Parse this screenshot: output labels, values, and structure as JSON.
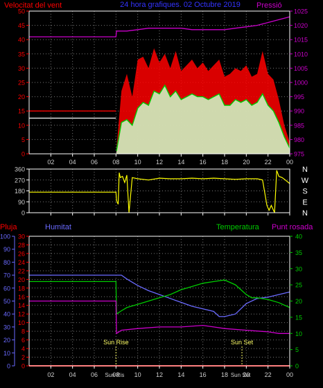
{
  "colors": {
    "background": "#000000",
    "frame": "#ffffff",
    "grid": "#777777",
    "gust": "#ff0000",
    "wind": "#00cc00",
    "wind_low": "#ccffcc",
    "pressure": "#cc00cc",
    "direction": "#ffff00",
    "rain": "#ff0000",
    "humidity": "#6a6aff",
    "temperature": "#00cc00",
    "dewpoint": "#cc00cc",
    "title": "#3333ff"
  },
  "chart_data": [
    {
      "type": "line",
      "title": "24 hora grafiques. 02 Octubre 2019",
      "ylabel_left": "Velocitat del vent",
      "ylabel_right": "Pressió",
      "x_ticks": [
        "02",
        "04",
        "06",
        "08",
        "10",
        "12",
        "14",
        "16",
        "18",
        "20",
        "22",
        "00"
      ],
      "y_ticks_left": [
        "0",
        "5",
        "10",
        "15",
        "20",
        "25",
        "30",
        "35",
        "40",
        "45",
        "50"
      ],
      "y_ticks_right": [
        "975",
        "980",
        "985",
        "990",
        "995",
        "1000",
        "1005",
        "1010",
        "1015",
        "1020",
        "1025"
      ],
      "ylim_left": [
        0,
        50
      ],
      "ylim_right": [
        975,
        1025
      ],
      "grid": true,
      "series": [
        {
          "values_x": [
            0,
            8.0,
            8.05,
            9,
            10,
            11,
            12,
            13,
            14,
            15,
            16,
            17,
            18,
            19,
            20,
            21,
            22,
            23,
            24
          ],
          "values": [
            1016,
            1016,
            1018,
            1018,
            1018.5,
            1019,
            1019,
            1019,
            1019,
            1018.5,
            1018.5,
            1018.5,
            1018.5,
            1019,
            1019.5,
            1020,
            1021,
            1022,
            1023
          ]
        },
        {
          "values_x": [
            0,
            8.0,
            8.05,
            8.5,
            9,
            9.5,
            10,
            10.5,
            11,
            11.5,
            12,
            12.5,
            13,
            13.5,
            14,
            14.5,
            15,
            15.5,
            16,
            16.5,
            17,
            17.5,
            18,
            18.5,
            19,
            19.5,
            20,
            20.5,
            21,
            21.5,
            22,
            22.5,
            23,
            23.5,
            24
          ],
          "values": [
            15,
            15,
            2,
            22,
            28,
            20,
            33,
            34,
            30,
            37,
            32,
            35,
            30,
            36,
            29,
            31,
            33,
            30,
            32,
            29,
            31,
            33,
            27,
            28,
            30,
            29,
            31,
            27,
            28,
            36,
            28,
            26,
            19,
            10,
            4
          ]
        },
        {
          "values_x": [
            0,
            8.0,
            8.05,
            8.5,
            9,
            9.5,
            10,
            10.5,
            11,
            11.5,
            12,
            12.5,
            13,
            13.5,
            14,
            14.5,
            15,
            15.5,
            16,
            16.5,
            17,
            17.5,
            18,
            18.5,
            19,
            19.5,
            20,
            20.5,
            21,
            21.5,
            22,
            22.5,
            23,
            23.5,
            24
          ],
          "values": [
            12.5,
            12.5,
            1,
            11,
            12,
            10,
            16,
            18,
            17,
            22,
            21,
            24,
            20,
            22,
            19,
            20,
            21,
            20,
            20,
            19,
            20,
            21,
            17,
            17,
            19,
            18,
            19,
            17,
            18,
            21,
            17,
            15,
            11,
            6,
            2
          ]
        }
      ]
    },
    {
      "type": "line",
      "x_ticks": [
        "02",
        "04",
        "06",
        "08",
        "10",
        "12",
        "14",
        "16",
        "18",
        "20",
        "22",
        "00"
      ],
      "y_ticks": [
        "0",
        "90",
        "180",
        "270",
        "360"
      ],
      "direction_labels": [
        "N",
        "W",
        "S",
        "E",
        "N"
      ],
      "ylim": [
        0,
        360
      ],
      "grid": true,
      "series": [
        {
          "values_x": [
            0,
            8.0,
            8.05,
            8.2,
            8.3,
            8.4,
            8.6,
            8.8,
            9.0,
            9.2,
            9.5,
            10,
            11,
            12,
            13,
            14,
            15,
            16,
            17,
            18,
            19,
            20,
            21,
            21.5,
            21.9,
            22.1,
            22.3,
            22.6,
            22.8,
            23,
            23.3,
            23.6,
            24
          ],
          "values": [
            170,
            170,
            100,
            70,
            330,
            290,
            300,
            250,
            310,
            0,
            290,
            280,
            270,
            285,
            280,
            280,
            285,
            280,
            285,
            280,
            275,
            280,
            280,
            270,
            60,
            20,
            60,
            0,
            350,
            300,
            290,
            270,
            240
          ]
        }
      ]
    },
    {
      "type": "line",
      "ylabel_rain": "Pluja",
      "ylabel_humidity": "Humitat",
      "ylabel_temperature": "Temperatura",
      "ylabel_dewpoint": "Punt rosada",
      "x_ticks": [
        "02",
        "04",
        "06",
        "08",
        "10",
        "12",
        "14",
        "16",
        "18",
        "20",
        "22",
        "00"
      ],
      "y_ticks_humidity": [
        "0",
        "10",
        "20",
        "30",
        "40",
        "50",
        "60",
        "70",
        "80",
        "90",
        "100"
      ],
      "y_ticks_rain": [
        "0",
        "2",
        "4",
        "6",
        "8",
        "10",
        "12",
        "14",
        "16",
        "18",
        "20",
        "22",
        "24",
        "26",
        "28",
        "30"
      ],
      "y_ticks_temperature": [
        "0",
        "5",
        "10",
        "15",
        "20",
        "25",
        "30",
        "35",
        "40"
      ],
      "ylim_humidity": [
        0,
        100
      ],
      "ylim_rain": [
        0,
        30
      ],
      "ylim_temperature": [
        0,
        40
      ],
      "markers": [
        {
          "label": "Sun Rise",
          "x": 8.0
        },
        {
          "label": "Sun Set",
          "x": 19.6
        }
      ],
      "bottom_marker_labels": [
        "Sun Ris",
        "Sun Set"
      ],
      "series": [
        {
          "values_x": [
            0,
            24
          ],
          "values": [
            0,
            0
          ]
        },
        {
          "values_x": [
            0,
            8.0,
            8.5,
            9,
            10,
            11,
            12,
            13,
            14,
            15,
            16,
            17,
            17.5,
            18,
            19,
            19.5,
            20,
            21,
            22,
            23,
            24
          ],
          "values": [
            70,
            70,
            70,
            67,
            62,
            58,
            55,
            52,
            49,
            46,
            44,
            42,
            38,
            38,
            40,
            44,
            48,
            52,
            53,
            55,
            57
          ]
        },
        {
          "values_x": [
            0,
            8.0,
            8.05,
            8.5,
            9,
            10,
            11,
            12,
            13,
            14,
            15,
            16,
            17,
            18,
            19,
            20,
            20.5,
            21,
            22,
            23,
            24
          ],
          "values": [
            26,
            26,
            16,
            17,
            18,
            19,
            20,
            21,
            22,
            23.5,
            24.5,
            25.5,
            26,
            26.5,
            25,
            22,
            21,
            21,
            20.5,
            19.5,
            18
          ]
        },
        {
          "values_x": [
            0,
            8.0,
            8.05,
            8.5,
            10,
            12,
            14,
            16,
            17,
            18,
            20,
            22,
            23,
            24
          ],
          "values": [
            20,
            20,
            10,
            11,
            11.5,
            12,
            12,
            12.5,
            12,
            11.5,
            11,
            10.5,
            10,
            10
          ]
        }
      ]
    }
  ]
}
